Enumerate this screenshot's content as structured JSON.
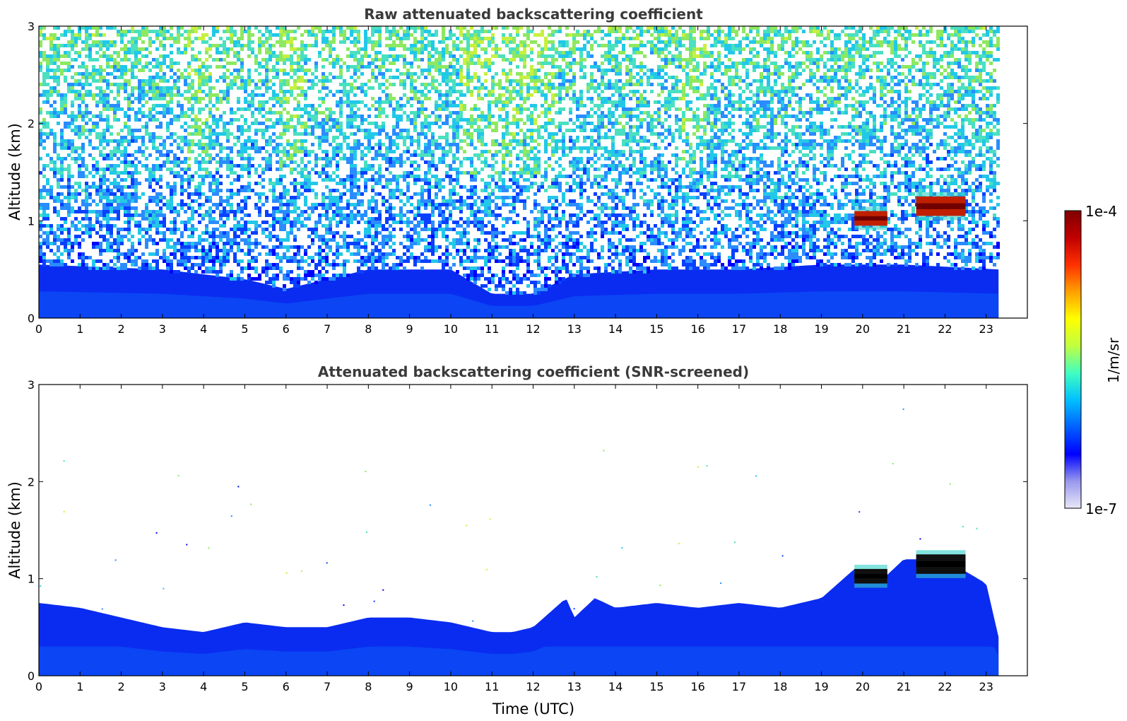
{
  "chart_data": [
    {
      "type": "heatmap",
      "title": "Raw attenuated backscattering coefficient",
      "xlabel": "",
      "ylabel": "Altitude (km)",
      "xlim": [
        0,
        24
      ],
      "ylim": [
        0,
        3
      ],
      "x_ticks": [
        "0",
        "1",
        "2",
        "3",
        "4",
        "5",
        "6",
        "7",
        "8",
        "9",
        "10",
        "11",
        "12",
        "13",
        "14",
        "15",
        "16",
        "17",
        "18",
        "19",
        "20",
        "21",
        "22",
        "23"
      ],
      "y_ticks": [
        "0",
        "1",
        "2",
        "3"
      ],
      "data_x_end": 23.3,
      "grid": false,
      "features": [
        {
          "label": "boundary layer top (km)",
          "x": [
            0,
            3,
            5,
            6,
            8,
            10,
            11,
            12,
            13,
            15,
            17,
            19,
            21,
            23.3
          ],
          "y": [
            0.55,
            0.5,
            0.4,
            0.3,
            0.5,
            0.5,
            0.25,
            0.25,
            0.45,
            0.5,
            0.5,
            0.55,
            0.55,
            0.5
          ]
        },
        {
          "label": "cloud",
          "x": [
            19.8,
            20.6
          ],
          "y": [
            0.95,
            1.1
          ]
        },
        {
          "label": "cloud",
          "x": [
            21.3,
            22.5
          ],
          "y": [
            1.05,
            1.25
          ]
        }
      ]
    },
    {
      "type": "heatmap",
      "title": "Attenuated backscattering coefficient (SNR-screened)",
      "xlabel": "Time (UTC)",
      "ylabel": "Altitude (km)",
      "xlim": [
        0,
        24
      ],
      "ylim": [
        0,
        3
      ],
      "x_ticks": [
        "0",
        "1",
        "2",
        "3",
        "4",
        "5",
        "6",
        "7",
        "8",
        "9",
        "10",
        "11",
        "12",
        "13",
        "14",
        "15",
        "16",
        "17",
        "18",
        "19",
        "20",
        "21",
        "22",
        "23"
      ],
      "y_ticks": [
        "0",
        "1",
        "2",
        "3"
      ],
      "data_x_end": 23.3,
      "grid": false,
      "features": [
        {
          "label": "boundary layer top (km)",
          "x": [
            0,
            1,
            2,
            3,
            4,
            5,
            6,
            7,
            8,
            9,
            10,
            11,
            11.5,
            12,
            12.8,
            13,
            13.5,
            14,
            15,
            16,
            17,
            18,
            19,
            19.8,
            20.5,
            21,
            22,
            23,
            23.3
          ],
          "y": [
            0.75,
            0.7,
            0.6,
            0.5,
            0.45,
            0.55,
            0.5,
            0.5,
            0.6,
            0.6,
            0.55,
            0.45,
            0.45,
            0.5,
            0.8,
            0.6,
            0.8,
            0.7,
            0.75,
            0.7,
            0.75,
            0.7,
            0.8,
            1.1,
            1.0,
            1.2,
            1.2,
            0.95,
            0.4
          ]
        },
        {
          "label": "cloud",
          "x": [
            19.8,
            20.6
          ],
          "y": [
            0.95,
            1.1
          ]
        },
        {
          "label": "cloud",
          "x": [
            21.3,
            22.5
          ],
          "y": [
            1.05,
            1.25
          ]
        }
      ]
    }
  ],
  "colorbar": {
    "label": "1/m/sr",
    "max_label": "1e-4",
    "min_label": "1e-7",
    "colors": [
      "#e8e8f8",
      "#9898ee",
      "#0000ff",
      "#0060ff",
      "#00c0ff",
      "#40ffc0",
      "#c0ff40",
      "#ffff00",
      "#ffa000",
      "#ff3000",
      "#c00000",
      "#800000"
    ]
  }
}
